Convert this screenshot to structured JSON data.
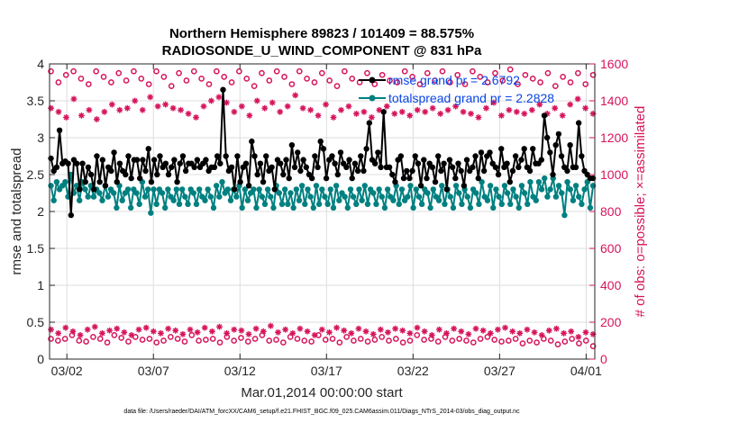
{
  "chart_data": {
    "type": "line",
    "title_lines": [
      "Northern Hemisphere 89823 / 101409 = 88.575%",
      "RADIOSONDE_U_WIND_COMPONENT @ 831 hPa"
    ],
    "xlabel": "Mar.01,2014 00:00:00 start",
    "ylabel": "rmse and totalspread",
    "ylabel_right": "# of obs: o=possible; ×=assimilated",
    "xlim": [
      0,
      31.5
    ],
    "ylim": [
      0,
      4
    ],
    "ylim_right": [
      0,
      1600
    ],
    "xtick_values": [
      1,
      6,
      11,
      16,
      21,
      26,
      31
    ],
    "xtick_labels": [
      "03/02",
      "03/07",
      "03/12",
      "03/17",
      "03/22",
      "03/27",
      "04/01"
    ],
    "ytick_labels": [
      "0",
      "0.5",
      "1",
      "1.5",
      "2",
      "2.5",
      "3",
      "3.5",
      "4"
    ],
    "ytick_right_labels": [
      "0",
      "200",
      "400",
      "600",
      "800",
      "1000",
      "1200",
      "1400",
      "1600"
    ],
    "grid": true,
    "legend_position": "top-right",
    "colors": {
      "rmse": "#000000",
      "spread": "#008080",
      "obs": "#d6145c",
      "legend_text": "#0a46e6",
      "grid": "#dddddd"
    },
    "series": [
      {
        "name": "rmse",
        "legend": "rmse grand pr = 2.6792",
        "axis": "left",
        "values": [
          2.72,
          2.55,
          2.6,
          3.1,
          2.65,
          2.68,
          2.65,
          1.95,
          2.7,
          2.65,
          2.3,
          2.65,
          2.4,
          2.6,
          2.5,
          2.3,
          2.75,
          2.4,
          2.7,
          2.35,
          2.6,
          2.55,
          2.8,
          2.4,
          2.65,
          2.55,
          2.5,
          2.75,
          2.45,
          2.7,
          2.7,
          2.45,
          2.7,
          2.55,
          2.85,
          2.4,
          2.7,
          2.5,
          2.75,
          2.6,
          2.65,
          2.5,
          2.6,
          2.7,
          2.4,
          2.65,
          2.75,
          2.55,
          2.65,
          2.65,
          2.6,
          2.7,
          2.6,
          2.65,
          2.7,
          2.55,
          2.6,
          2.6,
          2.75,
          2.65,
          3.65,
          2.75,
          2.55,
          2.6,
          2.3,
          2.75,
          2.4,
          2.6,
          2.65,
          2.35,
          2.95,
          2.75,
          2.5,
          2.65,
          2.4,
          2.75,
          2.55,
          2.6,
          2.3,
          2.7,
          2.65,
          2.5,
          2.7,
          2.45,
          2.9,
          2.6,
          2.8,
          2.55,
          2.7,
          2.6,
          2.5,
          2.45,
          2.75,
          2.6,
          2.95,
          2.85,
          2.45,
          2.7,
          2.75,
          2.65,
          2.5,
          2.8,
          2.65,
          2.6,
          2.7,
          2.45,
          2.65,
          2.55,
          2.75,
          2.55,
          2.85,
          3.2,
          2.7,
          2.65,
          2.8,
          2.6,
          3.35,
          2.6,
          2.6,
          2.5,
          2.4,
          2.7,
          2.75,
          2.45,
          2.55,
          2.45,
          2.55,
          2.75,
          2.65,
          2.35,
          2.7,
          2.45,
          2.65,
          2.6,
          2.4,
          2.75,
          2.55,
          2.65,
          2.3,
          2.7,
          2.6,
          2.45,
          2.65,
          2.55,
          2.35,
          2.7,
          2.55,
          2.6,
          2.75,
          2.45,
          2.8,
          2.55,
          2.75,
          2.8,
          2.65,
          2.6,
          2.5,
          2.85,
          2.6,
          2.65,
          2.4,
          2.55,
          2.75,
          2.6,
          2.7,
          2.85,
          2.6,
          2.55,
          2.85,
          2.65,
          2.65,
          2.7,
          3.3,
          3.0,
          2.8,
          2.5,
          2.9,
          3.05,
          2.75,
          2.6,
          2.55,
          2.9,
          2.6,
          2.6,
          3.2,
          2.75,
          2.55,
          2.5,
          2.45,
          2.45
        ]
      },
      {
        "name": "totalspread",
        "legend": "totalspread grand pr = 2.2828",
        "axis": "left",
        "values": [
          2.35,
          2.15,
          2.4,
          2.3,
          2.35,
          2.4,
          2.2,
          2.5,
          2.25,
          2.35,
          2.15,
          2.4,
          2.3,
          2.2,
          2.35,
          2.2,
          2.3,
          2.25,
          2.15,
          2.35,
          2.2,
          2.3,
          2.25,
          2.05,
          2.35,
          2.15,
          2.25,
          2.3,
          2.05,
          2.3,
          2.25,
          2.1,
          2.4,
          2.2,
          2.3,
          1.98,
          2.3,
          2.1,
          2.3,
          2.25,
          2.05,
          2.3,
          2.2,
          2.15,
          2.3,
          2.1,
          2.3,
          2.2,
          2.1,
          2.3,
          2.25,
          2.1,
          2.3,
          2.2,
          2.15,
          2.3,
          2.2,
          2.05,
          2.35,
          2.2,
          2.4,
          2.25,
          2.3,
          2.15,
          2.3,
          2.2,
          2.35,
          2.05,
          2.3,
          2.15,
          2.25,
          2.3,
          2.05,
          2.3,
          2.2,
          2.1,
          2.3,
          2.2,
          2.05,
          2.35,
          2.25,
          2.1,
          2.3,
          2.1,
          2.25,
          2.05,
          2.3,
          2.15,
          2.35,
          2.1,
          2.3,
          2.2,
          2.05,
          2.35,
          2.1,
          2.3,
          2.2,
          2.1,
          2.3,
          2.05,
          2.35,
          2.15,
          2.25,
          2.2,
          2.05,
          2.3,
          2.2,
          2.1,
          2.3,
          2.15,
          2.35,
          2.1,
          2.3,
          2.25,
          2.1,
          2.3,
          2.2,
          2.05,
          2.3,
          2.2,
          2.15,
          2.35,
          2.1,
          2.3,
          2.15,
          2.2,
          2.35,
          2.05,
          2.3,
          2.2,
          2.1,
          2.3,
          2.25,
          2.05,
          2.3,
          2.2,
          2.15,
          2.35,
          2.1,
          2.3,
          2.2,
          2.05,
          2.35,
          2.25,
          2.1,
          2.3,
          2.2,
          2.05,
          2.3,
          2.25,
          2.1,
          2.4,
          2.2,
          2.15,
          2.35,
          2.05,
          2.3,
          2.2,
          2.1,
          2.35,
          2.25,
          2.1,
          2.3,
          2.2,
          2.05,
          2.35,
          2.25,
          2.1,
          2.4,
          2.2,
          2.15,
          2.4,
          2.3,
          2.45,
          2.2,
          2.3,
          2.45,
          2.2,
          2.35,
          2.25,
          1.95,
          2.4,
          2.3,
          2.15,
          2.35,
          2.2,
          2.1,
          2.3,
          2.4,
          2.05,
          2.35
        ]
      },
      {
        "name": "possible obs (upper)",
        "marker": "circle",
        "axis": "right",
        "values": [
          1560,
          1500,
          1540,
          1560,
          1520,
          1490,
          1560,
          1530,
          1500,
          1550,
          1510,
          1560,
          1520,
          1490,
          1560,
          1530,
          1480,
          1550,
          1510,
          1560,
          1520,
          1490,
          1560,
          1530,
          1500,
          1560,
          1520,
          1480,
          1550,
          1510,
          1560,
          1530,
          1490,
          1560,
          1520,
          1500,
          1550,
          1510,
          1480,
          1560,
          1520,
          1500,
          1550,
          1490,
          1540,
          1510,
          1500,
          1560,
          1530,
          1490,
          1550,
          1510,
          1560,
          1500,
          1540,
          1490,
          1560,
          1530,
          1500,
          1550,
          1510,
          1570,
          1490,
          1540,
          1520,
          1500,
          1550,
          1480,
          1530,
          1500,
          1550,
          1490,
          1540
        ]
      },
      {
        "name": "assimilated obs (upper)",
        "marker": "asterisk",
        "axis": "right",
        "values": [
          1360,
          1340,
          1310,
          1410,
          1320,
          1350,
          1300,
          1340,
          1380,
          1350,
          1360,
          1400,
          1350,
          1420,
          1370,
          1380,
          1360,
          1350,
          1330,
          1310,
          1370,
          1400,
          1420,
          1390,
          1340,
          1370,
          1320,
          1400,
          1360,
          1390,
          1340,
          1370,
          1430,
          1360,
          1350,
          1320,
          1380,
          1310,
          1350,
          1370,
          1330,
          1340,
          1310,
          1350,
          1370,
          1330,
          1340,
          1320,
          1350,
          1340,
          1360,
          1330,
          1350,
          1370,
          1340,
          1330,
          1310,
          1360,
          1390,
          1320,
          1350,
          1340,
          1330,
          1350,
          1380,
          1330,
          1360,
          1320,
          1380,
          1410,
          1360,
          1330
        ]
      },
      {
        "name": "possible obs (lower)",
        "marker": "circle",
        "axis": "right",
        "values": [
          110,
          100,
          110,
          130,
          100,
          95,
          120,
          110,
          90,
          130,
          115,
          95,
          120,
          105,
          110,
          90,
          100,
          120,
          110,
          95,
          130,
          100,
          105,
          110,
          90,
          120,
          100,
          115,
          95,
          110,
          130,
          100,
          105,
          90,
          120,
          110,
          100,
          95,
          130,
          105,
          110,
          90,
          120,
          100,
          110,
          95,
          105,
          120,
          100,
          110,
          90,
          100,
          130,
          105,
          110,
          95,
          120,
          100,
          110,
          100,
          90,
          110,
          120,
          105,
          95,
          100,
          110,
          85,
          100,
          90,
          110,
          100,
          80,
          95,
          110,
          85,
          100,
          70
        ]
      },
      {
        "name": "assimilated obs (lower)",
        "marker": "asterisk",
        "axis": "right",
        "values": [
          160,
          140,
          170,
          150,
          130,
          160,
          175,
          140,
          155,
          165,
          145,
          130,
          160,
          170,
          150,
          140,
          165,
          155,
          135,
          160,
          145,
          170,
          150,
          175,
          140,
          160,
          155,
          135,
          165,
          150,
          180,
          145,
          160,
          140,
          165,
          150,
          130,
          160,
          145,
          170,
          155,
          140,
          165,
          150,
          135,
          160,
          145,
          165,
          155,
          140,
          170,
          150,
          130,
          160,
          140,
          165,
          150,
          135,
          165,
          155,
          140,
          160,
          170,
          150,
          140,
          160,
          145,
          130,
          155,
          165,
          140,
          150,
          120,
          145,
          135
        ]
      }
    ]
  },
  "footnote": "data file: /Users/raeder/DAI/ATM_forcXX/CAM6_setup/f.e21.FHIST_BGC.f09_025.CAM6assim.011/Diags_NTrS_2014-03/obs_diag_output.nc"
}
